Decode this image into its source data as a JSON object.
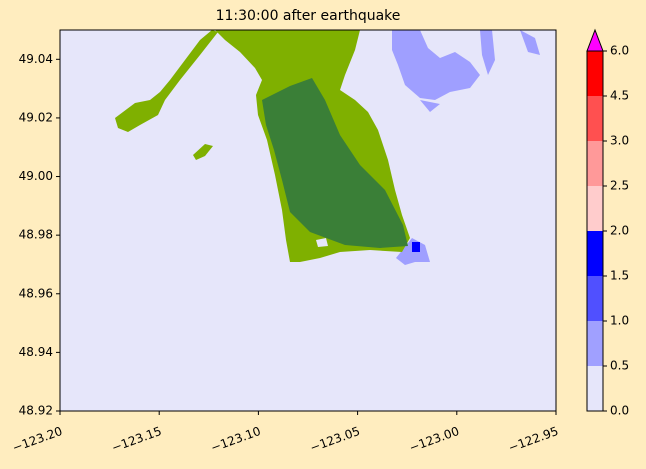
{
  "chart_data": {
    "type": "map",
    "title": "11:30:00 after earthquake",
    "xlim": [
      -123.2,
      -122.95
    ],
    "xticks": [
      {
        "value": -123.2,
        "label": "−123.20"
      },
      {
        "value": -123.15,
        "label": "−123.15"
      },
      {
        "value": -123.1,
        "label": "−123.10"
      },
      {
        "value": -123.05,
        "label": "−123.05"
      },
      {
        "value": -123.0,
        "label": "−123.00"
      },
      {
        "value": -122.95,
        "label": "−122.95"
      }
    ],
    "ylim": [
      48.92,
      49.05
    ],
    "yticks": [
      48.92,
      48.94,
      48.96,
      48.98,
      {
        "value": 49.0,
        "label": "49.00"
      },
      49.02,
      49.04
    ],
    "colorbar": {
      "levels": [
        {
          "value": 0,
          "label": "0.0"
        },
        0.5,
        {
          "value": 1,
          "label": "1.0"
        },
        1.5,
        {
          "value": 2,
          "label": "2.0"
        },
        2.5,
        {
          "value": 3,
          "label": "3.0"
        },
        4.5,
        {
          "value": 6,
          "label": "6.0"
        }
      ],
      "colors": [
        "#e6e6fa",
        "#a0a0ff",
        "#5050ff",
        "#0000ff",
        "#ffcccc",
        "#ff9999",
        "#ff5050",
        "#ff0000"
      ],
      "extend_color": "#ff00ff"
    }
  }
}
